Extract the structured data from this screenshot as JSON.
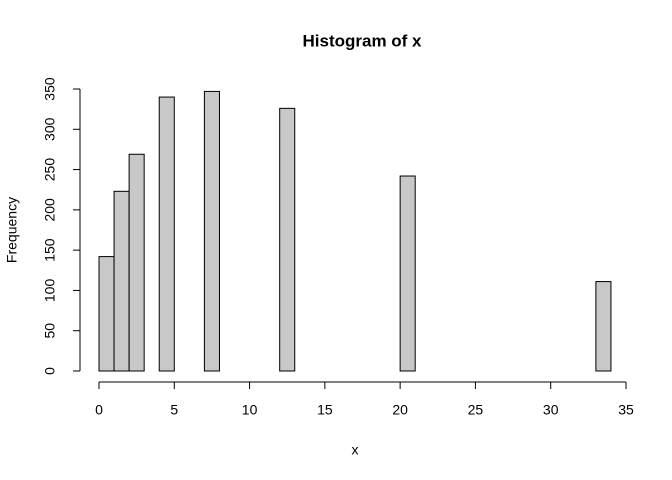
{
  "chart_data": {
    "type": "histogram",
    "title": "Histogram of x",
    "x_label": "x",
    "y_label": "Frequency",
    "bins": [
      0,
      1,
      2,
      3,
      4,
      5,
      6,
      7,
      8,
      9,
      10,
      11,
      12,
      13,
      14,
      15,
      16,
      17,
      18,
      19,
      20,
      21,
      22,
      23,
      24,
      25,
      26,
      27,
      28,
      29,
      30,
      31,
      32,
      33,
      34
    ],
    "values": [
      142,
      223,
      269,
      0,
      340,
      0,
      0,
      347,
      0,
      0,
      0,
      0,
      326,
      0,
      0,
      0,
      0,
      0,
      0,
      0,
      242,
      0,
      0,
      0,
      0,
      0,
      0,
      0,
      0,
      0,
      0,
      0,
      0,
      111
    ],
    "color": "#c8c8c8",
    "xlim": [
      0,
      35
    ],
    "xticks": [
      0,
      5,
      10,
      15,
      20,
      25,
      30,
      35
    ],
    "ylim": [
      0,
      350
    ],
    "yticks": [
      0,
      50,
      100,
      150,
      200,
      250,
      300,
      350
    ]
  }
}
